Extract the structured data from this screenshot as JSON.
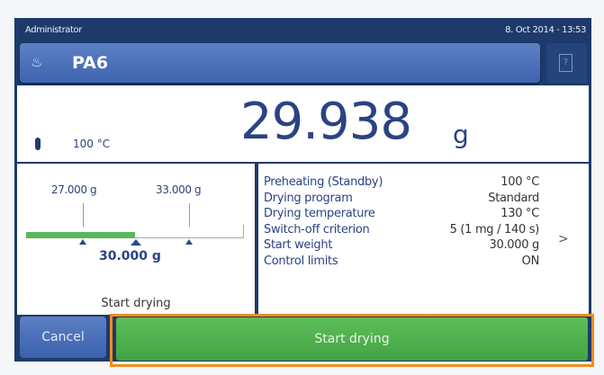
{
  "status": {
    "user": "Administrator",
    "datetime": "8. Oct 2014 - 13:53"
  },
  "title": {
    "icon": "drying-method-icon",
    "name": "PA6",
    "help_icon": "help-book-icon"
  },
  "display": {
    "temperature": "100 °C",
    "weight": "29.938",
    "unit": "g"
  },
  "weight_panel": {
    "lower_limit": "27.000 g",
    "upper_limit": "33.000 g",
    "start_weight": "30.000 g",
    "lower_value": 27,
    "upper_value": 33,
    "start_value": 30,
    "status": "Start drying",
    "accent": "#5cb65a"
  },
  "parameters": [
    {
      "label": "Preheating (Standby)",
      "value": "100 °C"
    },
    {
      "label": "Drying program",
      "value": "Standard"
    },
    {
      "label": "Drying temperature",
      "value": "130 °C"
    },
    {
      "label": "Switch-off criterion",
      "value": "5  (1 mg / 140 s)"
    },
    {
      "label": "Start weight",
      "value": "30.000 g"
    },
    {
      "label": "Control limits",
      "value": "ON"
    }
  ],
  "more": ">",
  "buttons": {
    "cancel": "Cancel",
    "start": "Start drying",
    "highlight": "#f28c1c"
  }
}
